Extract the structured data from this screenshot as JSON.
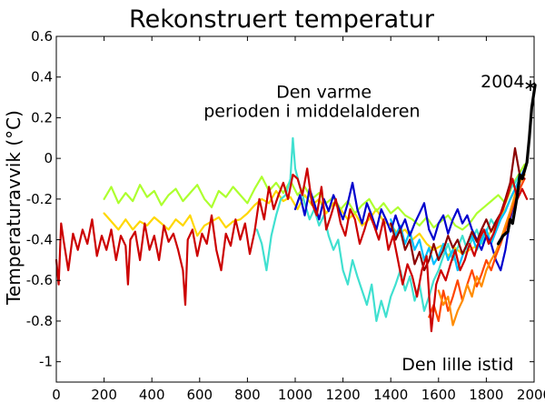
{
  "chart_data": {
    "type": "line",
    "title": "Rekonstruert temperatur",
    "ylabel": "Temperaturavvik (°C)",
    "xlabel": "",
    "xlim": [
      0,
      2000
    ],
    "ylim": [
      -1.1,
      0.6
    ],
    "xticks": [
      0,
      200,
      400,
      600,
      800,
      1000,
      1200,
      1400,
      1600,
      1800,
      2000
    ],
    "xtick_labels": [
      "0",
      "200",
      "400",
      "600",
      "800",
      "1000",
      "1200",
      "1400",
      "1600",
      "1800",
      "2000"
    ],
    "yticks": [
      -1,
      -0.8,
      -0.6,
      -0.4,
      -0.2,
      0,
      0.2,
      0.4,
      0.6
    ],
    "ytick_labels": [
      "-1",
      "-0.8",
      "-0.6",
      "-0.4",
      "-0.2",
      "0",
      "0.2",
      "0.4",
      "0.6"
    ],
    "grid": false,
    "annotations": [
      {
        "text": "Den varme",
        "x": 1120,
        "y": 0.33
      },
      {
        "text": "perioden i middelalderen",
        "x": 1070,
        "y": 0.235
      },
      {
        "text": "Den lille istid",
        "x": 1680,
        "y": -1.01
      },
      {
        "text": "2004",
        "x": 1960,
        "y": 0.38
      },
      {
        "text": "∗",
        "x": 1985,
        "y": 0.38
      }
    ],
    "series": [
      {
        "color": "#ffd700",
        "x": [
          200,
          230,
          260,
          290,
          320,
          350,
          380,
          410,
          440,
          470,
          500,
          530,
          560,
          590,
          620,
          650,
          680,
          710,
          740,
          770,
          800,
          830,
          860,
          890,
          920,
          950,
          980,
          1010,
          1040,
          1070,
          1100,
          1130,
          1160,
          1190,
          1220,
          1250,
          1280,
          1310,
          1340,
          1370,
          1400,
          1430,
          1460,
          1490,
          1520,
          1550,
          1580,
          1610,
          1640,
          1670,
          1700,
          1730,
          1760,
          1790,
          1820,
          1850,
          1880,
          1910,
          1940,
          1960
        ],
        "y": [
          -0.27,
          -0.31,
          -0.35,
          -0.3,
          -0.35,
          -0.31,
          -0.33,
          -0.29,
          -0.32,
          -0.35,
          -0.3,
          -0.33,
          -0.28,
          -0.38,
          -0.33,
          -0.31,
          -0.29,
          -0.34,
          -0.31,
          -0.3,
          -0.27,
          -0.23,
          -0.2,
          -0.22,
          -0.16,
          -0.21,
          -0.19,
          -0.25,
          -0.18,
          -0.23,
          -0.2,
          -0.27,
          -0.22,
          -0.25,
          -0.3,
          -0.27,
          -0.33,
          -0.3,
          -0.25,
          -0.31,
          -0.33,
          -0.37,
          -0.35,
          -0.4,
          -0.37,
          -0.42,
          -0.45,
          -0.43,
          -0.48,
          -0.44,
          -0.47,
          -0.45,
          -0.43,
          -0.4,
          -0.36,
          -0.31,
          -0.25,
          -0.18,
          -0.1,
          -0.06
        ]
      },
      {
        "color": "#adff2f",
        "x": [
          200,
          230,
          260,
          290,
          320,
          350,
          380,
          410,
          440,
          470,
          500,
          530,
          560,
          590,
          620,
          650,
          680,
          710,
          740,
          770,
          800,
          830,
          860,
          890,
          920,
          950,
          980,
          1010,
          1040,
          1070,
          1100,
          1130,
          1160,
          1190,
          1220,
          1250,
          1280,
          1310,
          1340,
          1370,
          1400,
          1430,
          1460,
          1490,
          1520,
          1550,
          1580,
          1610,
          1640,
          1670,
          1700,
          1730,
          1760,
          1790,
          1820,
          1850,
          1880,
          1910,
          1940,
          1960
        ],
        "y": [
          -0.2,
          -0.14,
          -0.22,
          -0.17,
          -0.21,
          -0.13,
          -0.19,
          -0.16,
          -0.23,
          -0.18,
          -0.15,
          -0.21,
          -0.17,
          -0.13,
          -0.2,
          -0.24,
          -0.16,
          -0.19,
          -0.14,
          -0.18,
          -0.22,
          -0.15,
          -0.09,
          -0.16,
          -0.12,
          -0.17,
          -0.11,
          -0.18,
          -0.14,
          -0.2,
          -0.17,
          -0.22,
          -0.19,
          -0.25,
          -0.21,
          -0.27,
          -0.23,
          -0.2,
          -0.26,
          -0.22,
          -0.27,
          -0.24,
          -0.28,
          -0.3,
          -0.33,
          -0.29,
          -0.34,
          -0.31,
          -0.28,
          -0.33,
          -0.35,
          -0.32,
          -0.27,
          -0.24,
          -0.21,
          -0.18,
          -0.22,
          -0.13,
          -0.07,
          -0.03
        ]
      },
      {
        "color": "#40e0d0",
        "x": [
          840,
          860,
          880,
          900,
          920,
          940,
          960,
          980,
          990,
          1000,
          1020,
          1040,
          1060,
          1080,
          1100,
          1120,
          1140,
          1160,
          1180,
          1200,
          1220,
          1240,
          1260,
          1280,
          1300,
          1320,
          1340,
          1360,
          1380,
          1400,
          1420,
          1440,
          1460,
          1480,
          1500,
          1520,
          1540,
          1560,
          1580,
          1600,
          1620,
          1640,
          1660,
          1680,
          1700,
          1720,
          1740,
          1760,
          1780,
          1800,
          1820,
          1840,
          1860,
          1880,
          1900,
          1920,
          1940
        ],
        "y": [
          -0.35,
          -0.42,
          -0.55,
          -0.38,
          -0.28,
          -0.2,
          -0.18,
          -0.1,
          0.1,
          -0.05,
          -0.14,
          -0.22,
          -0.3,
          -0.25,
          -0.33,
          -0.28,
          -0.38,
          -0.45,
          -0.4,
          -0.55,
          -0.62,
          -0.5,
          -0.58,
          -0.65,
          -0.72,
          -0.62,
          -0.8,
          -0.7,
          -0.78,
          -0.68,
          -0.62,
          -0.55,
          -0.65,
          -0.58,
          -0.7,
          -0.62,
          -0.75,
          -0.68,
          -0.6,
          -0.55,
          -0.48,
          -0.42,
          -0.5,
          -0.44,
          -0.38,
          -0.45,
          -0.4,
          -0.35,
          -0.42,
          -0.36,
          -0.3,
          -0.34,
          -0.28,
          -0.2,
          -0.15,
          -0.12,
          -0.08
        ]
      },
      {
        "color": "#00bfff",
        "x": [
          1400,
          1420,
          1440,
          1460,
          1480,
          1500,
          1520,
          1540,
          1560,
          1580,
          1600,
          1620,
          1640,
          1660,
          1680,
          1700,
          1720,
          1740,
          1760,
          1780,
          1800,
          1820,
          1840,
          1860,
          1880,
          1900,
          1920,
          1940,
          1960
        ],
        "y": [
          -0.3,
          -0.38,
          -0.33,
          -0.42,
          -0.36,
          -0.45,
          -0.4,
          -0.5,
          -0.44,
          -0.52,
          -0.48,
          -0.42,
          -0.5,
          -0.45,
          -0.55,
          -0.48,
          -0.42,
          -0.38,
          -0.45,
          -0.4,
          -0.35,
          -0.42,
          -0.36,
          -0.3,
          -0.26,
          -0.2,
          -0.15,
          -0.1,
          -0.05
        ]
      },
      {
        "color": "#0000cd",
        "x": [
          1000,
          1020,
          1040,
          1060,
          1080,
          1100,
          1120,
          1140,
          1160,
          1180,
          1200,
          1220,
          1240,
          1260,
          1280,
          1300,
          1320,
          1340,
          1360,
          1380,
          1400,
          1420,
          1440,
          1460,
          1480,
          1500,
          1520,
          1540,
          1560,
          1580,
          1600,
          1620,
          1640,
          1660,
          1680,
          1700,
          1720,
          1740,
          1760,
          1780,
          1800,
          1820,
          1840,
          1860,
          1880,
          1900,
          1920,
          1940,
          1960
        ],
        "y": [
          -0.25,
          -0.18,
          -0.28,
          -0.15,
          -0.22,
          -0.3,
          -0.2,
          -0.26,
          -0.18,
          -0.24,
          -0.3,
          -0.22,
          -0.12,
          -0.25,
          -0.32,
          -0.22,
          -0.28,
          -0.35,
          -0.25,
          -0.3,
          -0.36,
          -0.28,
          -0.35,
          -0.3,
          -0.38,
          -0.32,
          -0.27,
          -0.22,
          -0.35,
          -0.4,
          -0.32,
          -0.28,
          -0.37,
          -0.3,
          -0.25,
          -0.32,
          -0.28,
          -0.35,
          -0.4,
          -0.45,
          -0.38,
          -0.42,
          -0.5,
          -0.55,
          -0.45,
          -0.3,
          -0.2,
          -0.12,
          -0.05
        ]
      },
      {
        "color": "#ff4500",
        "x": [
          1560,
          1580,
          1600,
          1620,
          1640,
          1660,
          1680,
          1700,
          1720,
          1740,
          1760,
          1780,
          1800,
          1820,
          1840,
          1860,
          1880,
          1900,
          1920,
          1940,
          1960
        ],
        "y": [
          -0.78,
          -0.72,
          -0.8,
          -0.65,
          -0.75,
          -0.68,
          -0.6,
          -0.7,
          -0.62,
          -0.55,
          -0.63,
          -0.57,
          -0.5,
          -0.55,
          -0.48,
          -0.42,
          -0.35,
          -0.28,
          -0.2,
          -0.15,
          -0.1
        ]
      },
      {
        "color": "#ff8c00",
        "x": [
          1600,
          1620,
          1640,
          1660,
          1680,
          1700,
          1720,
          1740,
          1760,
          1780,
          1800,
          1820,
          1840,
          1860,
          1880,
          1900,
          1920,
          1940,
          1960
        ],
        "y": [
          -0.65,
          -0.72,
          -0.68,
          -0.82,
          -0.75,
          -0.7,
          -0.62,
          -0.68,
          -0.58,
          -0.63,
          -0.55,
          -0.5,
          -0.46,
          -0.4,
          -0.33,
          -0.26,
          -0.18,
          -0.12,
          -0.08
        ]
      },
      {
        "color": "#8b0000",
        "x": [
          1400,
          1420,
          1440,
          1460,
          1480,
          1500,
          1520,
          1540,
          1560,
          1580,
          1600,
          1620,
          1640,
          1660,
          1680,
          1700,
          1720,
          1740,
          1760,
          1780,
          1800,
          1820,
          1840,
          1860,
          1880,
          1900,
          1920,
          1940,
          1960
        ],
        "y": [
          -0.32,
          -0.4,
          -0.35,
          -0.45,
          -0.4,
          -0.52,
          -0.46,
          -0.55,
          -0.5,
          -0.42,
          -0.5,
          -0.45,
          -0.38,
          -0.44,
          -0.4,
          -0.47,
          -0.42,
          -0.36,
          -0.41,
          -0.35,
          -0.3,
          -0.36,
          -0.31,
          -0.27,
          -0.2,
          -0.12,
          0.05,
          -0.08,
          -0.1
        ]
      },
      {
        "color": "#cc0000",
        "x": [
          0,
          10,
          20,
          30,
          50,
          70,
          90,
          110,
          130,
          150,
          170,
          190,
          210,
          230,
          250,
          270,
          290,
          300,
          310,
          330,
          350,
          370,
          390,
          410,
          430,
          450,
          470,
          490,
          510,
          530,
          540,
          550,
          570,
          590,
          610,
          630,
          650,
          670,
          690,
          710,
          730,
          750,
          770,
          790,
          810,
          830,
          850,
          870,
          890,
          910,
          930,
          950,
          970,
          990,
          1010,
          1030,
          1050,
          1070,
          1090,
          1110,
          1130,
          1150,
          1170,
          1190,
          1210,
          1230,
          1250,
          1270,
          1290,
          1310,
          1330,
          1350,
          1370,
          1390,
          1410,
          1430,
          1450,
          1470,
          1490,
          1510,
          1530,
          1550,
          1570,
          1590,
          1610,
          1630,
          1650,
          1670,
          1690,
          1710,
          1730,
          1750,
          1770,
          1790,
          1810,
          1830,
          1850,
          1870,
          1890,
          1910,
          1930,
          1950,
          1970
        ],
        "y": [
          -0.5,
          -0.62,
          -0.32,
          -0.4,
          -0.55,
          -0.37,
          -0.45,
          -0.35,
          -0.42,
          -0.3,
          -0.48,
          -0.38,
          -0.45,
          -0.35,
          -0.5,
          -0.38,
          -0.43,
          -0.62,
          -0.4,
          -0.36,
          -0.5,
          -0.32,
          -0.45,
          -0.38,
          -0.5,
          -0.33,
          -0.41,
          -0.37,
          -0.45,
          -0.55,
          -0.72,
          -0.4,
          -0.35,
          -0.48,
          -0.37,
          -0.42,
          -0.28,
          -0.45,
          -0.55,
          -0.37,
          -0.43,
          -0.3,
          -0.4,
          -0.32,
          -0.47,
          -0.36,
          -0.2,
          -0.3,
          -0.14,
          -0.25,
          -0.18,
          -0.12,
          -0.2,
          -0.08,
          -0.1,
          -0.18,
          -0.05,
          -0.22,
          -0.28,
          -0.14,
          -0.35,
          -0.28,
          -0.2,
          -0.32,
          -0.38,
          -0.25,
          -0.3,
          -0.42,
          -0.35,
          -0.27,
          -0.33,
          -0.4,
          -0.3,
          -0.45,
          -0.38,
          -0.5,
          -0.62,
          -0.52,
          -0.58,
          -0.68,
          -0.55,
          -0.48,
          -0.85,
          -0.62,
          -0.55,
          -0.6,
          -0.52,
          -0.45,
          -0.55,
          -0.5,
          -0.42,
          -0.48,
          -0.4,
          -0.35,
          -0.42,
          -0.37,
          -0.3,
          -0.25,
          -0.18,
          -0.1,
          -0.2,
          -0.15,
          -0.2
        ]
      },
      {
        "color": "#000000",
        "x": [
          1850,
          1870,
          1890,
          1900,
          1910,
          1920,
          1930,
          1940,
          1950,
          1960,
          1970,
          1980,
          1990,
          2004
        ],
        "y": [
          -0.42,
          -0.38,
          -0.36,
          -0.3,
          -0.32,
          -0.25,
          -0.18,
          -0.08,
          -0.1,
          -0.06,
          -0.02,
          0.1,
          0.25,
          0.36
        ]
      }
    ]
  }
}
